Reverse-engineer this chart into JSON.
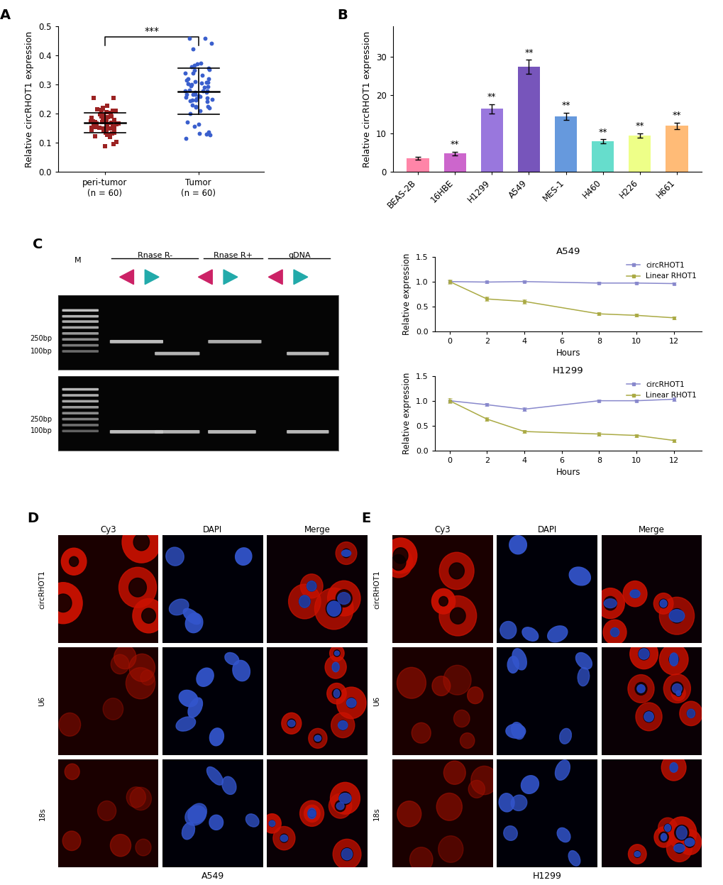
{
  "panel_A": {
    "peritumor_mean": 0.163,
    "peritumor_sd": 0.048,
    "tumor_mean": 0.284,
    "tumor_sd": 0.088,
    "peritumor_color": "#9B2222",
    "tumor_color": "#3A5FCD",
    "significance": "***",
    "ylabel": "Relative circRHOT1 expression",
    "ylim": [
      0,
      0.5
    ],
    "yticks": [
      0,
      0.1,
      0.2,
      0.3,
      0.4,
      0.5
    ],
    "xlabel_labels": [
      "peri-tumor\n(n = 60)",
      "Tumor\n(n = 60)"
    ]
  },
  "panel_B": {
    "categories": [
      "BEAS-2B",
      "16HBE",
      "H1299",
      "A549",
      "MES-1",
      "H460",
      "H226",
      "H661"
    ],
    "values": [
      3.5,
      4.8,
      16.5,
      27.5,
      14.5,
      8.0,
      9.5,
      12.0
    ],
    "errors": [
      0.4,
      0.5,
      1.2,
      1.8,
      1.0,
      0.5,
      0.6,
      0.9
    ],
    "colors": [
      "#FF85A8",
      "#CC66CC",
      "#9977DD",
      "#7755BB",
      "#6699DD",
      "#66DDCC",
      "#EEFF88",
      "#FFBB77"
    ],
    "significance": [
      "",
      "**",
      "**",
      "**",
      "**",
      "**",
      "**",
      "**"
    ],
    "ylabel": "Relative circRHOT1 expression",
    "ylim": [
      0,
      38
    ],
    "yticks": [
      0,
      10,
      20,
      30
    ]
  },
  "panel_C_A549": {
    "hours": [
      0,
      2,
      4,
      8,
      10,
      12
    ],
    "circRHOT1": [
      1.0,
      0.99,
      1.0,
      0.97,
      0.97,
      0.96
    ],
    "circRHOT1_err": [
      0.02,
      0.02,
      0.02,
      0.02,
      0.02,
      0.02
    ],
    "linearRHOT1": [
      1.0,
      0.65,
      0.6,
      0.35,
      0.32,
      0.27
    ],
    "linearRHOT1_err": [
      0.04,
      0.04,
      0.04,
      0.03,
      0.03,
      0.03
    ],
    "circ_color": "#8888CC",
    "linear_color": "#AAAA44",
    "title": "A549",
    "ylabel": "Relative expression",
    "xlabel": "Hours",
    "ylim": [
      0.0,
      1.5
    ],
    "yticks": [
      0.0,
      0.5,
      1.0,
      1.5
    ]
  },
  "panel_C_H1299": {
    "hours": [
      0,
      2,
      4,
      8,
      10,
      12
    ],
    "circRHOT1": [
      1.0,
      0.92,
      0.83,
      1.0,
      1.0,
      1.03
    ],
    "circRHOT1_err": [
      0.02,
      0.03,
      0.04,
      0.02,
      0.02,
      0.03
    ],
    "linearRHOT1": [
      1.0,
      0.63,
      0.38,
      0.33,
      0.3,
      0.2
    ],
    "linearRHOT1_err": [
      0.05,
      0.04,
      0.03,
      0.03,
      0.03,
      0.03
    ],
    "circ_color": "#8888CC",
    "linear_color": "#AAAA44",
    "title": "H1299",
    "ylabel": "Relative expression",
    "xlabel": "Hours",
    "ylim": [
      0.0,
      1.5
    ],
    "yticks": [
      0.0,
      0.5,
      1.0,
      1.5
    ]
  },
  "figure_bg": "#FFFFFF",
  "gel_band_color": "#CCCCCC",
  "gel_ladder_color": "#888888",
  "arrow_pink": "#CC2266",
  "arrow_teal": "#22AAAA"
}
